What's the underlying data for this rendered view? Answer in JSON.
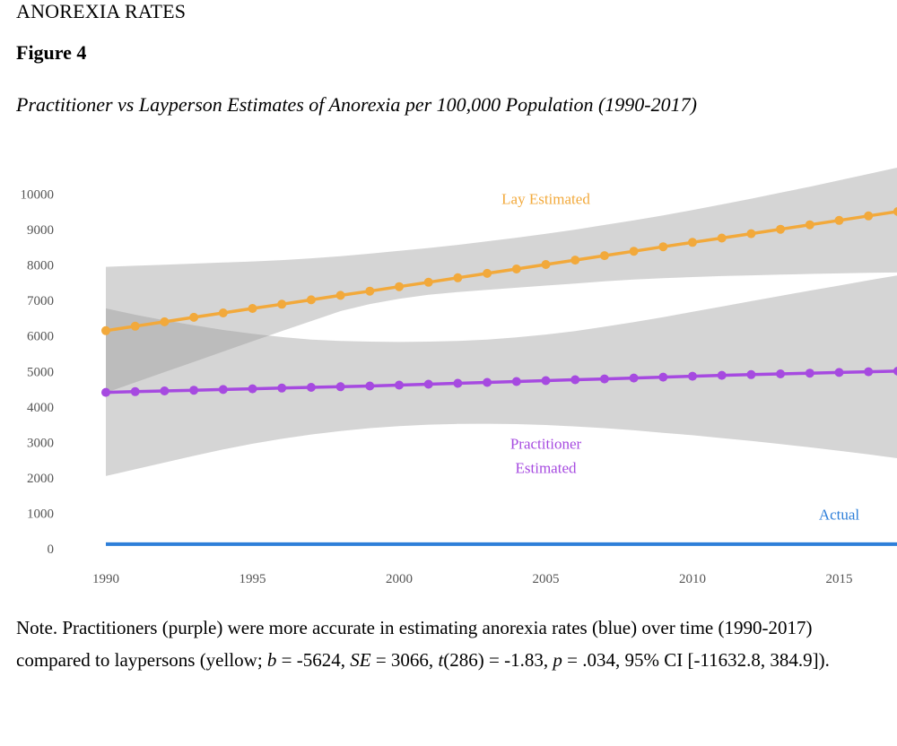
{
  "header": {
    "running_head": "ANOREXIA RATES",
    "figure_label": "Figure 4",
    "figure_title": "Practitioner vs Layperson Estimates of Anorexia per 100,000 Population (1990-2017)"
  },
  "note": {
    "part1": "Note. Practitioners (purple) were more accurate in estimating anorexia rates (blue) over time (1990-2017) compared to laypersons (yellow; ",
    "b_label": "b",
    "b_value": " = -5624, ",
    "se_label": "SE",
    "se_value": " = 3066, ",
    "t_label": "t",
    "t_value": "(286) = -1.83, ",
    "p_label": "p",
    "p_value": " = .034, 95% CI [-11632.8, 384.9])."
  },
  "chart_data": {
    "type": "line",
    "title": "",
    "xlabel": "",
    "ylabel": "",
    "x": [
      1990,
      1991,
      1992,
      1993,
      1994,
      1995,
      1996,
      1997,
      1998,
      1999,
      2000,
      2001,
      2002,
      2003,
      2004,
      2005,
      2006,
      2007,
      2008,
      2009,
      2010,
      2011,
      2012,
      2013,
      2014,
      2015,
      2016,
      2017
    ],
    "xlim": [
      1990,
      2017
    ],
    "ylim": [
      0,
      10000
    ],
    "x_ticks": [
      "1990",
      "1995",
      "2000",
      "2005",
      "2010",
      "2015"
    ],
    "y_ticks": [
      "0",
      "1000",
      "2000",
      "3000",
      "4000",
      "5000",
      "6000",
      "7000",
      "8000",
      "9000",
      "10000"
    ],
    "series": [
      {
        "name": "Lay Estimated",
        "color": "#f2a93b",
        "markers": true,
        "values": [
          6150,
          6275,
          6400,
          6525,
          6650,
          6775,
          6895,
          7020,
          7145,
          7265,
          7390,
          7515,
          7640,
          7765,
          7890,
          8015,
          8140,
          8265,
          8390,
          8515,
          8640,
          8760,
          8885,
          9010,
          9135,
          9260,
          9385,
          9510
        ],
        "ci_lower": [
          4400,
          4690,
          4980,
          5270,
          5560,
          5850,
          6140,
          6420,
          6700,
          6900,
          7050,
          7160,
          7240,
          7300,
          7360,
          7420,
          7480,
          7540,
          7590,
          7630,
          7660,
          7690,
          7710,
          7730,
          7750,
          7765,
          7780,
          7790
        ],
        "ci_upper": [
          7950,
          7980,
          8010,
          8040,
          8070,
          8100,
          8140,
          8190,
          8250,
          8320,
          8400,
          8480,
          8570,
          8670,
          8770,
          8880,
          9000,
          9130,
          9260,
          9400,
          9550,
          9710,
          9870,
          10040,
          10210,
          10390,
          10570,
          10750
        ],
        "label_at": [
          2005.0,
          9900
        ]
      },
      {
        "name": "Practitioner Estimated",
        "label_lines": [
          "Practitioner",
          "Estimated"
        ],
        "color": "#a64ae0",
        "markers": true,
        "values": [
          4410,
          4430,
          4450,
          4470,
          4490,
          4510,
          4530,
          4550,
          4570,
          4590,
          4615,
          4640,
          4665,
          4690,
          4715,
          4740,
          4765,
          4790,
          4815,
          4840,
          4865,
          4890,
          4910,
          4930,
          4950,
          4970,
          4990,
          5010
        ],
        "ci_lower": [
          2050,
          2240,
          2430,
          2620,
          2800,
          2960,
          3100,
          3220,
          3320,
          3400,
          3460,
          3500,
          3520,
          3525,
          3515,
          3490,
          3450,
          3400,
          3340,
          3270,
          3200,
          3120,
          3040,
          2950,
          2860,
          2760,
          2660,
          2550
        ],
        "ci_upper": [
          6780,
          6600,
          6440,
          6300,
          6170,
          6060,
          5970,
          5900,
          5860,
          5840,
          5830,
          5840,
          5860,
          5900,
          5960,
          6040,
          6140,
          6260,
          6390,
          6530,
          6680,
          6830,
          6980,
          7130,
          7280,
          7420,
          7570,
          7710
        ],
        "label_at": [
          2005.0,
          3000
        ]
      },
      {
        "name": "Actual",
        "color": "#2e7fd9",
        "markers": false,
        "values": [
          130,
          130,
          130,
          130,
          130,
          130,
          130,
          130,
          130,
          130,
          130,
          130,
          130,
          130,
          130,
          130,
          130,
          130,
          130,
          130,
          130,
          130,
          130,
          130,
          130,
          130,
          130,
          130
        ],
        "label_at": [
          2015.0,
          1000
        ]
      }
    ]
  }
}
